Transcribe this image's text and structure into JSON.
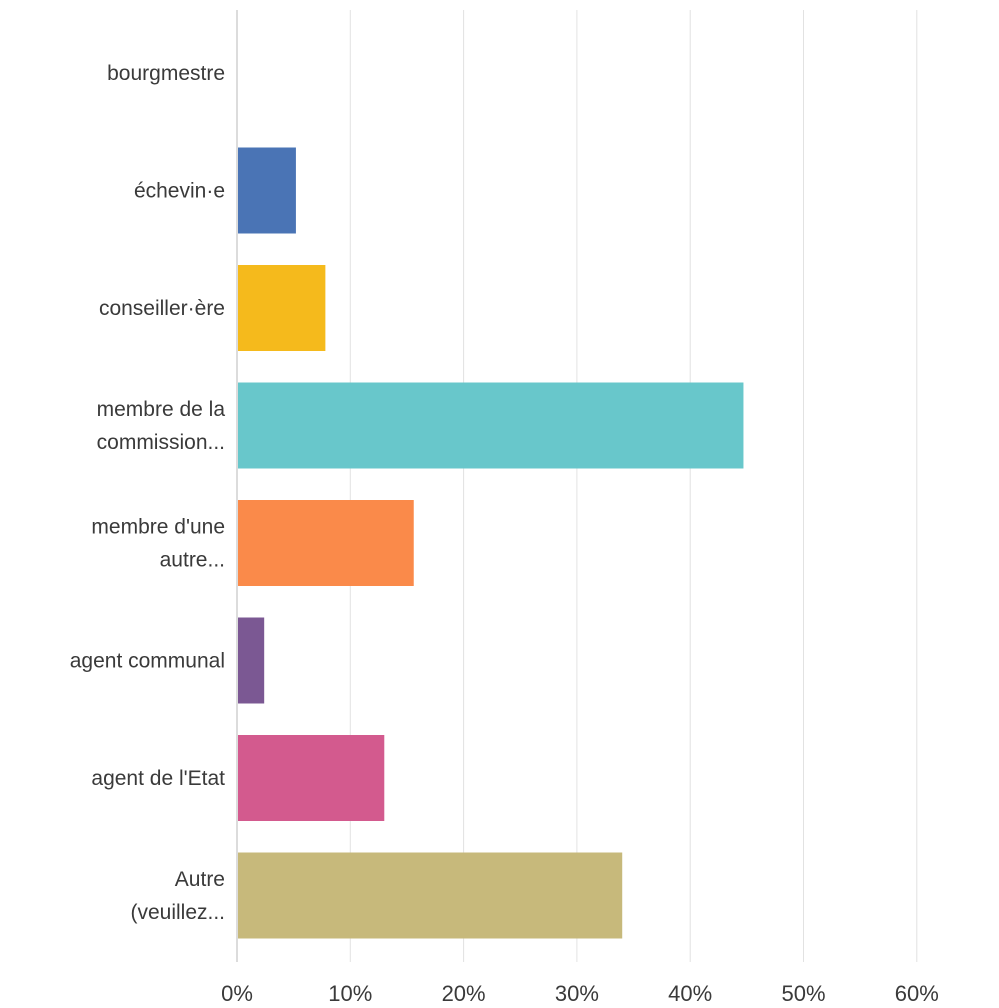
{
  "chart_data": {
    "type": "bar",
    "orientation": "horizontal",
    "title": "",
    "xlabel": "",
    "ylabel": "",
    "categories": [
      [
        "bourgmestre"
      ],
      [
        "échevin·e"
      ],
      [
        "conseiller·ère"
      ],
      [
        "membre de la",
        "commission..."
      ],
      [
        "membre d'une",
        "autre..."
      ],
      [
        "agent communal"
      ],
      [
        "agent de l'Etat"
      ],
      [
        "Autre",
        "(veuillez..."
      ]
    ],
    "values": [
      0,
      5.2,
      7.8,
      44.7,
      15.6,
      2.4,
      13.0,
      34.0
    ],
    "colors": [
      "#4a74b5",
      "#4a74b5",
      "#f5ba1c",
      "#68c7cb",
      "#fa8a4a",
      "#7b5893",
      "#d35a8e",
      "#c7b97b"
    ],
    "xlim": [
      0,
      68
    ],
    "xticks": [
      0,
      10,
      20,
      30,
      40,
      50,
      60
    ],
    "xtick_labels": [
      "0%",
      "10%",
      "20%",
      "30%",
      "40%",
      "50%",
      "60%"
    ],
    "grid": true,
    "legend": false
  }
}
